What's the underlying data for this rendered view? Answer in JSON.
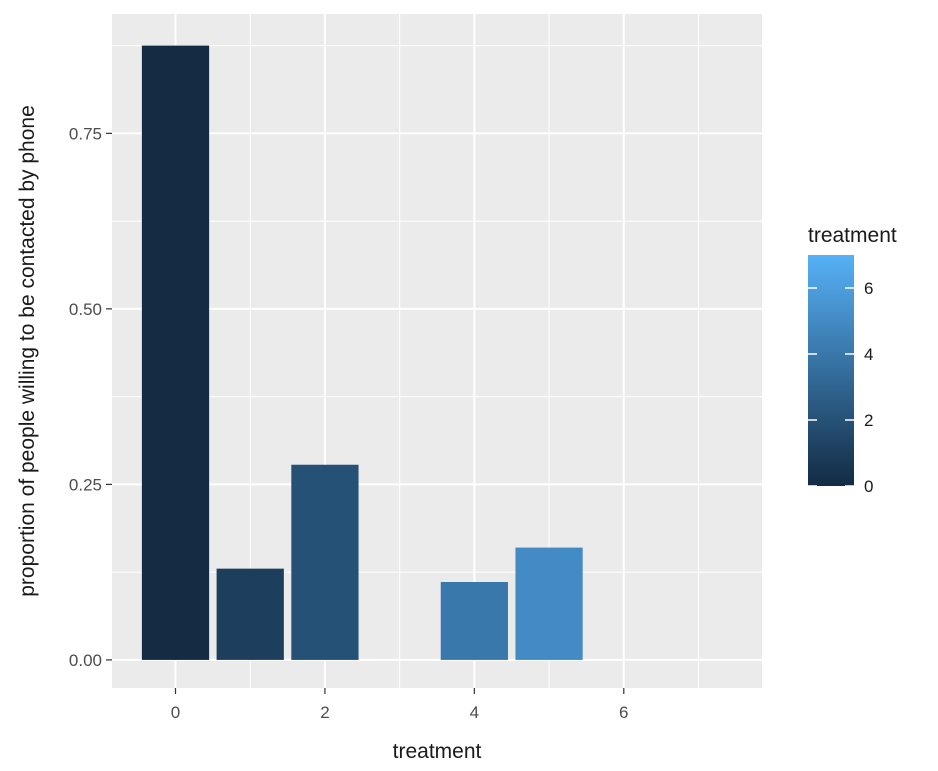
{
  "chart_data": {
    "type": "bar",
    "xlabel": "treatment",
    "ylabel": "proportion of people willing to be contacted by phone",
    "x": [
      0,
      1,
      2,
      4,
      5
    ],
    "values": [
      0.875,
      0.13,
      0.278,
      0.111,
      0.16
    ],
    "color_values": [
      0,
      1,
      2,
      4,
      5
    ],
    "xlim": [
      -0.85,
      7.85
    ],
    "ylim": [
      -0.04,
      0.92
    ],
    "x_ticks": [
      0,
      2,
      4,
      6
    ],
    "x_tick_labels": [
      "0",
      "2",
      "4",
      "6"
    ],
    "y_ticks": [
      0,
      0.25,
      0.5,
      0.75
    ],
    "y_tick_labels": [
      "0.00",
      "0.25",
      "0.50",
      "0.75"
    ],
    "grid": true,
    "legend": {
      "title": "treatment",
      "position": "right",
      "type": "colorbar",
      "range": [
        0,
        7
      ],
      "ticks": [
        0,
        2,
        4,
        6
      ],
      "tick_labels": [
        "0",
        "2",
        "4",
        "6"
      ],
      "colors": [
        "#132B43",
        "#56B1F7"
      ]
    }
  },
  "style": {
    "panel_bg": "#EBEBEB",
    "grid_color": "#FFFFFF"
  }
}
